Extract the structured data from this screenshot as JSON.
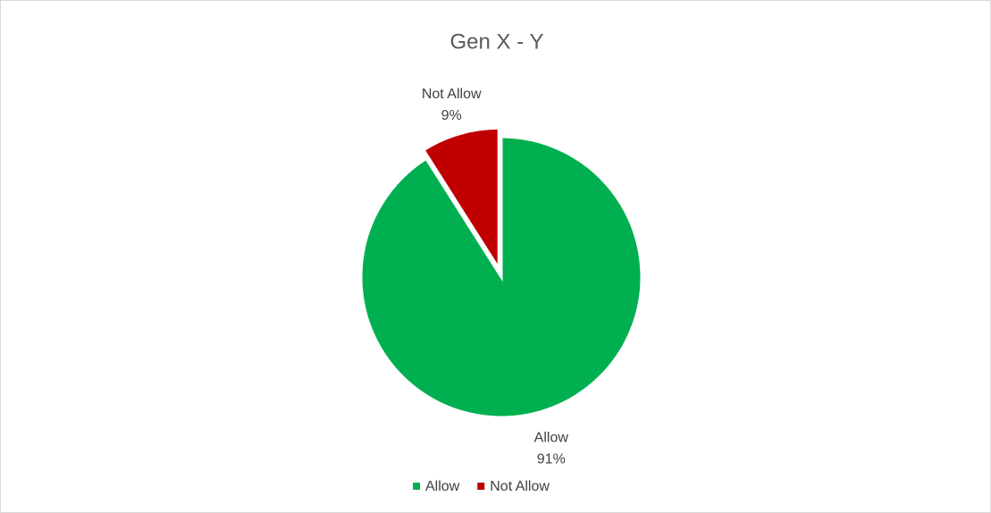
{
  "chart_data": {
    "type": "pie",
    "title": "Gen X - Y",
    "categories": [
      "Allow",
      "Not Allow"
    ],
    "values": [
      91,
      9
    ],
    "value_labels": [
      "91%",
      "9%"
    ],
    "colors": [
      "#00b050",
      "#c00000"
    ],
    "legend": "bottom"
  }
}
